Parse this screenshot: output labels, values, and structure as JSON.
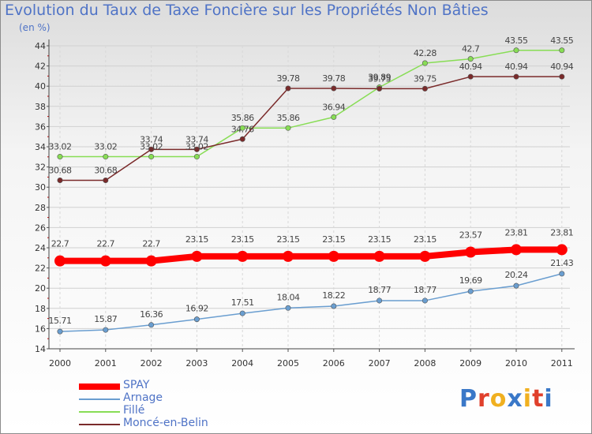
{
  "title": "Evolution du Taux de Taxe Foncière sur les Propriétés Non Bâties",
  "unit_label": "(en %)",
  "logo": {
    "text": "Proxiti",
    "letters": [
      "P",
      "r",
      "o",
      "x",
      "i",
      "t",
      "i"
    ],
    "colors": [
      "#3a78c8",
      "#e0402c",
      "#f0b020",
      "#3a78c8",
      "#f0b020",
      "#e0402c",
      "#3a78c8"
    ]
  },
  "chart_data": {
    "type": "line",
    "title": "Evolution du Taux de Taxe Foncière sur les Propriétés Non Bâties",
    "ylabel": "(en %)",
    "xlabel": "",
    "categories": [
      "2000",
      "2001",
      "2002",
      "2003",
      "2004",
      "2005",
      "2006",
      "2007",
      "2008",
      "2009",
      "2010",
      "2011"
    ],
    "ylim": [
      14,
      44
    ],
    "yticks": [
      14,
      16,
      18,
      20,
      22,
      24,
      26,
      28,
      30,
      32,
      34,
      36,
      38,
      40,
      42,
      44
    ],
    "grid": true,
    "legend_position": "bottom-left",
    "series": [
      {
        "name": "SPAY",
        "color": "#ff0000",
        "values": [
          22.7,
          22.7,
          22.7,
          23.15,
          23.15,
          23.15,
          23.15,
          23.15,
          23.15,
          23.57,
          23.81,
          23.81
        ],
        "labels": [
          "22.7",
          "22.7",
          "22.7",
          "23.15",
          "23.15",
          "23.15",
          "23.15",
          "23.15",
          "23.15",
          "23.57",
          "23.81",
          "23.81"
        ]
      },
      {
        "name": "Arnage",
        "color": "#6a9ed0",
        "values": [
          15.71,
          15.87,
          16.36,
          16.92,
          17.51,
          18.04,
          18.22,
          18.77,
          18.77,
          19.69,
          20.24,
          21.43
        ],
        "labels": [
          "15.71",
          "15.87",
          "16.36",
          "16.92",
          "17.51",
          "18.04",
          "18.22",
          "18.77",
          "18.77",
          "19.69",
          "20.24",
          "21.43"
        ]
      },
      {
        "name": "Fillé",
        "color": "#88dd55",
        "values": [
          33.02,
          33.02,
          33.02,
          33.02,
          35.86,
          35.86,
          36.94,
          39.89,
          42.28,
          42.7,
          43.55,
          43.55
        ],
        "labels": [
          "33.02",
          "33.02",
          "33.02",
          "33.02",
          "35.86",
          "35.86",
          "36.94",
          "39.89",
          "42.28",
          "42.7",
          "43.55",
          "43.55"
        ]
      },
      {
        "name": "Moncé-en-Belin",
        "color": "#7a2a2a",
        "values": [
          30.68,
          30.68,
          33.74,
          33.74,
          34.76,
          39.78,
          39.78,
          39.75,
          39.75,
          40.94,
          40.94,
          40.94
        ],
        "labels": [
          "30.68",
          "30.68",
          "33.74",
          "33.74",
          "34.76",
          "39.78",
          "39.78",
          "39.75",
          "39.75",
          "40.94",
          "40.94",
          "40.94"
        ]
      }
    ]
  }
}
